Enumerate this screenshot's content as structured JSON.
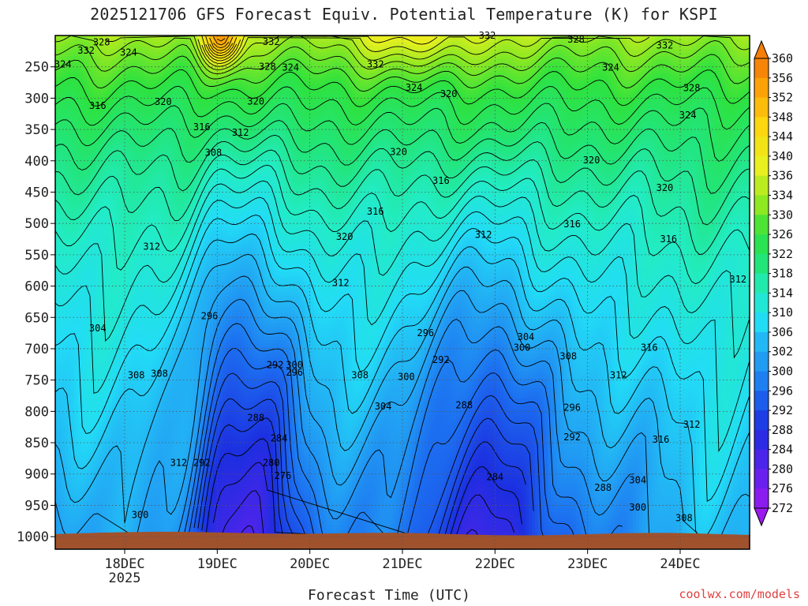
{
  "title": "2025121706 GFS Forecast Equiv. Potential Temperature (K) for KSPI",
  "credit": "coolwx.com/models",
  "chart_data": {
    "type": "heatmap",
    "title": "2025121706 GFS Forecast Equiv. Potential Temperature (K) for KSPI",
    "xlabel": "Forecast Time (UTC)",
    "ylabel": "",
    "x_ticks": [
      {
        "label": "18DEC",
        "sub": "2025",
        "hour": 18
      },
      {
        "label": "19DEC",
        "sub": "",
        "hour": 42
      },
      {
        "label": "20DEC",
        "sub": "",
        "hour": 66
      },
      {
        "label": "21DEC",
        "sub": "",
        "hour": 90
      },
      {
        "label": "22DEC",
        "sub": "",
        "hour": 114
      },
      {
        "label": "23DEC",
        "sub": "",
        "hour": 138
      },
      {
        "label": "24DEC",
        "sub": "",
        "hour": 162
      }
    ],
    "xlim_hours": [
      0,
      180
    ],
    "y_ticks": [
      "250",
      "300",
      "350",
      "400",
      "450",
      "500",
      "550",
      "600",
      "650",
      "700",
      "750",
      "800",
      "850",
      "900",
      "950",
      "1000"
    ],
    "ylim_hpa": [
      200,
      1020
    ],
    "colorbar": {
      "min": 272,
      "max": 360,
      "labels": [
        "360",
        "356",
        "352",
        "348",
        "344",
        "340",
        "336",
        "334",
        "330",
        "326",
        "322",
        "318",
        "314",
        "310",
        "306",
        "302",
        "300",
        "296",
        "292",
        "288",
        "284",
        "280",
        "276",
        "272"
      ],
      "stops": [
        {
          "v": 272,
          "color": "#9a1af0"
        },
        {
          "v": 280,
          "color": "#5a22ee"
        },
        {
          "v": 288,
          "color": "#1c2ee0"
        },
        {
          "v": 296,
          "color": "#1c6cf0"
        },
        {
          "v": 302,
          "color": "#22a6f4"
        },
        {
          "v": 308,
          "color": "#22dcf6"
        },
        {
          "v": 314,
          "color": "#22ecc6"
        },
        {
          "v": 320,
          "color": "#22e57a"
        },
        {
          "v": 326,
          "color": "#2ee23e"
        },
        {
          "v": 332,
          "color": "#8ee822"
        },
        {
          "v": 338,
          "color": "#e8f020"
        },
        {
          "v": 346,
          "color": "#fcd60e"
        },
        {
          "v": 354,
          "color": "#fca208"
        },
        {
          "v": 360,
          "color": "#f57708"
        }
      ]
    },
    "contour_labels": [
      {
        "text": "328",
        "hour": 12,
        "hpa": 211
      },
      {
        "text": "332",
        "hour": 8,
        "hpa": 224
      },
      {
        "text": "324",
        "hour": 19,
        "hpa": 227
      },
      {
        "text": "324",
        "hour": 2,
        "hpa": 246
      },
      {
        "text": "332",
        "hour": 56,
        "hpa": 210
      },
      {
        "text": "328",
        "hour": 55,
        "hpa": 250
      },
      {
        "text": "324",
        "hour": 61,
        "hpa": 251
      },
      {
        "text": "332",
        "hour": 83,
        "hpa": 246
      },
      {
        "text": "332",
        "hour": 112,
        "hpa": 200
      },
      {
        "text": "328",
        "hour": 135,
        "hpa": 206
      },
      {
        "text": "332",
        "hour": 158,
        "hpa": 216
      },
      {
        "text": "324",
        "hour": 144,
        "hpa": 251
      },
      {
        "text": "324",
        "hour": 93,
        "hpa": 283
      },
      {
        "text": "320",
        "hour": 102,
        "hpa": 293
      },
      {
        "text": "328",
        "hour": 165,
        "hpa": 284
      },
      {
        "text": "316",
        "hour": 11,
        "hpa": 312
      },
      {
        "text": "320",
        "hour": 28,
        "hpa": 306
      },
      {
        "text": "320",
        "hour": 52,
        "hpa": 305
      },
      {
        "text": "324",
        "hour": 164,
        "hpa": 327
      },
      {
        "text": "316",
        "hour": 38,
        "hpa": 346
      },
      {
        "text": "312",
        "hour": 48,
        "hpa": 355
      },
      {
        "text": "308",
        "hour": 41,
        "hpa": 387
      },
      {
        "text": "320",
        "hour": 89,
        "hpa": 386
      },
      {
        "text": "320",
        "hour": 139,
        "hpa": 399
      },
      {
        "text": "316",
        "hour": 100,
        "hpa": 432
      },
      {
        "text": "320",
        "hour": 158,
        "hpa": 443
      },
      {
        "text": "316",
        "hour": 83,
        "hpa": 481
      },
      {
        "text": "316",
        "hour": 134,
        "hpa": 501
      },
      {
        "text": "320",
        "hour": 75,
        "hpa": 521
      },
      {
        "text": "312",
        "hour": 111,
        "hpa": 518
      },
      {
        "text": "316",
        "hour": 159,
        "hpa": 525
      },
      {
        "text": "312",
        "hour": 25,
        "hpa": 537
      },
      {
        "text": "312",
        "hour": 74,
        "hpa": 595
      },
      {
        "text": "312",
        "hour": 177,
        "hpa": 589
      },
      {
        "text": "296",
        "hour": 40,
        "hpa": 648
      },
      {
        "text": "304",
        "hour": 11,
        "hpa": 667
      },
      {
        "text": "296",
        "hour": 96,
        "hpa": 675
      },
      {
        "text": "304",
        "hour": 122,
        "hpa": 681
      },
      {
        "text": "300",
        "hour": 121,
        "hpa": 698
      },
      {
        "text": "308",
        "hour": 133,
        "hpa": 712
      },
      {
        "text": "316",
        "hour": 154,
        "hpa": 698
      },
      {
        "text": "292",
        "hour": 57,
        "hpa": 726
      },
      {
        "text": "300",
        "hour": 62,
        "hpa": 726
      },
      {
        "text": "296",
        "hour": 62,
        "hpa": 738
      },
      {
        "text": "292",
        "hour": 100,
        "hpa": 718
      },
      {
        "text": "308",
        "hour": 21,
        "hpa": 742
      },
      {
        "text": "308",
        "hour": 27,
        "hpa": 740
      },
      {
        "text": "308",
        "hour": 79,
        "hpa": 742
      },
      {
        "text": "300",
        "hour": 91,
        "hpa": 745
      },
      {
        "text": "312",
        "hour": 146,
        "hpa": 742
      },
      {
        "text": "304",
        "hour": 85,
        "hpa": 792
      },
      {
        "text": "288",
        "hour": 106,
        "hpa": 790
      },
      {
        "text": "296",
        "hour": 134,
        "hpa": 794
      },
      {
        "text": "288",
        "hour": 52,
        "hpa": 810
      },
      {
        "text": "284",
        "hour": 58,
        "hpa": 843
      },
      {
        "text": "312",
        "hour": 165,
        "hpa": 821
      },
      {
        "text": "292",
        "hour": 134,
        "hpa": 841
      },
      {
        "text": "316",
        "hour": 157,
        "hpa": 845
      },
      {
        "text": "312",
        "hour": 32,
        "hpa": 882
      },
      {
        "text": "292",
        "hour": 38,
        "hpa": 882
      },
      {
        "text": "280",
        "hour": 56,
        "hpa": 882
      },
      {
        "text": "276",
        "hour": 59,
        "hpa": 903
      },
      {
        "text": "284",
        "hour": 114,
        "hpa": 905
      },
      {
        "text": "304",
        "hour": 151,
        "hpa": 910
      },
      {
        "text": "288",
        "hour": 142,
        "hpa": 922
      },
      {
        "text": "300",
        "hour": 151,
        "hpa": 953
      },
      {
        "text": "300",
        "hour": 22,
        "hpa": 965
      },
      {
        "text": "308",
        "hour": 163,
        "hpa": 970
      }
    ]
  }
}
